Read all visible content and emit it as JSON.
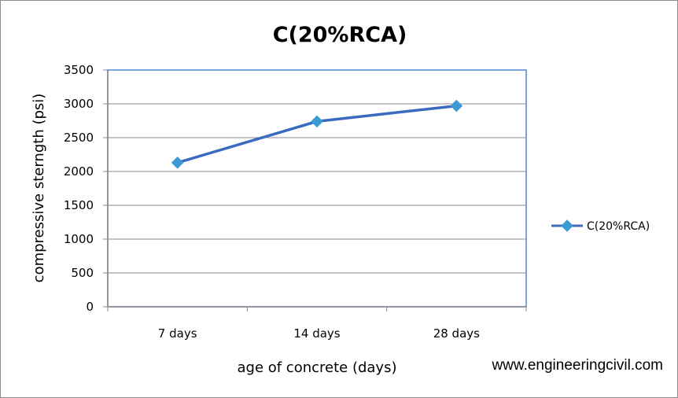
{
  "chart_data": {
    "type": "line",
    "title": "C(20%RCA)",
    "xlabel": "age of concrete (days)",
    "ylabel": "compressive sterngth (psi)",
    "categories": [
      "7 days",
      "14 days",
      "28 days"
    ],
    "ylim": [
      0,
      3500
    ],
    "yticks": [
      0,
      500,
      1000,
      1500,
      2000,
      2500,
      3000,
      3500
    ],
    "grid": true,
    "legend_position": "right",
    "series": [
      {
        "name": "C(20%RCA)",
        "values": [
          2130,
          2740,
          2970
        ],
        "color": "#3a6bbf",
        "marker": "diamond"
      }
    ]
  },
  "watermark": "www.engineeringcivil.com"
}
